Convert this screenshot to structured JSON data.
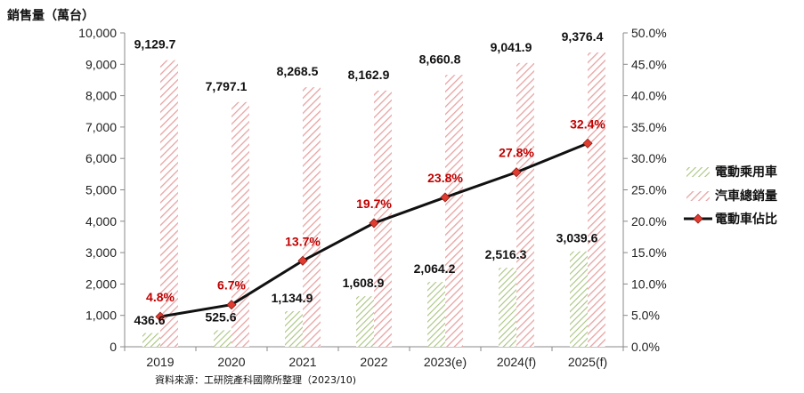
{
  "chart_data": {
    "type": "bar",
    "categories": [
      "2019",
      "2020",
      "2021",
      "2022",
      "2023(e)",
      "2024(f)",
      "2025(f)"
    ],
    "series": [
      {
        "name": "電動乘用車",
        "kind": "bar",
        "axis": "left",
        "values": [
          436.6,
          525.6,
          1134.9,
          1608.9,
          2064.2,
          2516.3,
          3039.6
        ],
        "labels": [
          "436.6",
          "525.6",
          "1,134.9",
          "1,608.9",
          "2,064.2",
          "2,516.3",
          "3,039.6"
        ],
        "color": "#a9c47f"
      },
      {
        "name": "汽車總銷量",
        "kind": "bar",
        "axis": "left",
        "values": [
          9129.7,
          7797.1,
          8268.5,
          8162.9,
          8660.8,
          9041.9,
          9376.4
        ],
        "labels": [
          "9,129.7",
          "7,797.1",
          "8,268.5",
          "8,162.9",
          "8,660.8",
          "9,041.9",
          "9,376.4"
        ],
        "color": "#e8a3a3"
      },
      {
        "name": "電動車佔比",
        "kind": "line",
        "axis": "right",
        "values": [
          4.8,
          6.7,
          13.7,
          19.7,
          23.8,
          27.8,
          32.4
        ],
        "labels": [
          "4.8%",
          "6.7%",
          "13.7%",
          "19.7%",
          "23.8%",
          "27.8%",
          "32.4%"
        ],
        "color": "#111111",
        "marker_color": "#e03c31",
        "label_color": "#c00000"
      }
    ],
    "ylabel": "銷售量（萬台）",
    "ylim": [
      0,
      10000
    ],
    "yticks": [
      "0",
      "1,000",
      "2,000",
      "3,000",
      "4,000",
      "5,000",
      "6,000",
      "7,000",
      "8,000",
      "9,000",
      "10,000"
    ],
    "y2lim": [
      0,
      50
    ],
    "y2ticks": [
      "0.0%",
      "5.0%",
      "10.0%",
      "15.0%",
      "20.0%",
      "25.0%",
      "30.0%",
      "35.0%",
      "40.0%",
      "45.0%",
      "50.0%"
    ],
    "legend_position": "right",
    "grid": false,
    "source": "資料來源：工研院產科國際所整理（2023/10)"
  }
}
